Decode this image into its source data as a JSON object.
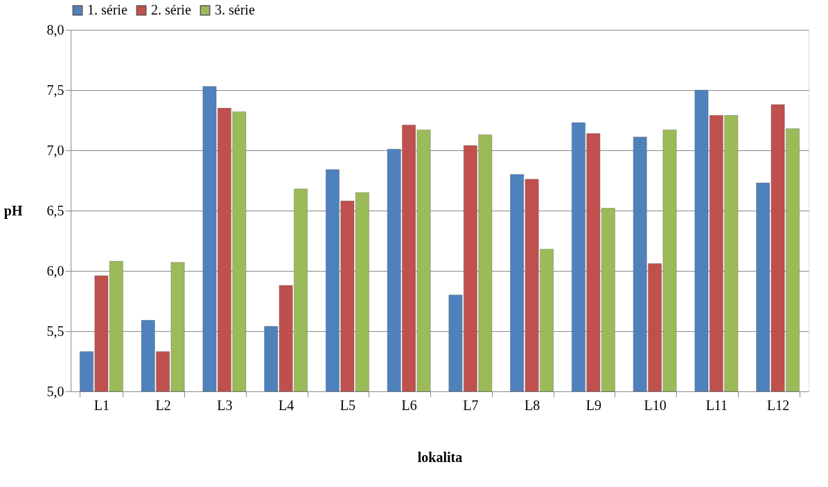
{
  "chart_data": {
    "type": "bar",
    "xlabel": "lokalita",
    "ylabel": "pH",
    "categories": [
      "L1",
      "L2",
      "L3",
      "L4",
      "L5",
      "L6",
      "L7",
      "L8",
      "L9",
      "L10",
      "L11",
      "L12"
    ],
    "series": [
      {
        "name": "1. série",
        "color": "#4f81bd",
        "values": [
          5.33,
          5.59,
          7.53,
          5.54,
          6.84,
          7.01,
          5.8,
          6.8,
          7.23,
          7.11,
          7.5,
          6.73
        ]
      },
      {
        "name": "2. série",
        "color": "#c0504d",
        "values": [
          5.96,
          5.33,
          7.35,
          5.88,
          6.58,
          7.21,
          7.04,
          6.76,
          7.14,
          6.06,
          7.29,
          7.38
        ]
      },
      {
        "name": "3. série",
        "color": "#9bbb59",
        "values": [
          6.08,
          6.07,
          7.32,
          6.68,
          6.65,
          7.17,
          7.13,
          6.18,
          6.52,
          7.17,
          7.29,
          7.18
        ]
      }
    ],
    "ylim": [
      5.0,
      8.0
    ],
    "yticks": [
      {
        "value": 5.0,
        "label": "5,0"
      },
      {
        "value": 5.5,
        "label": "5,5"
      },
      {
        "value": 6.0,
        "label": "6,0"
      },
      {
        "value": 6.5,
        "label": "6,5"
      },
      {
        "value": 7.0,
        "label": "7,0"
      },
      {
        "value": 7.5,
        "label": "7,5"
      },
      {
        "value": 8.0,
        "label": "8,0"
      }
    ],
    "grid": "y",
    "legend": "top"
  }
}
